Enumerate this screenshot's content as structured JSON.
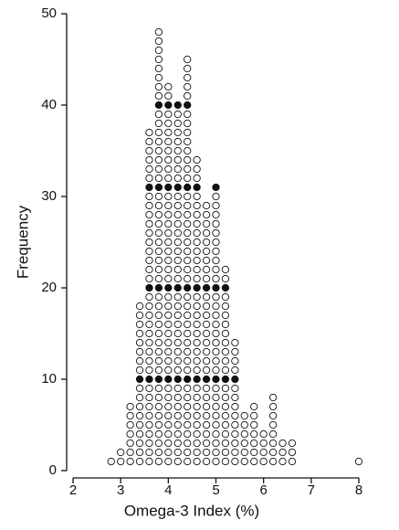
{
  "chart_data": {
    "type": "dotplot",
    "x_label": "Omega-3 Index (%)",
    "y_label": "Frequency",
    "x": [
      2.8,
      3.0,
      3.2,
      3.4,
      3.6,
      3.8,
      4.0,
      4.2,
      4.4,
      4.6,
      4.8,
      5.0,
      5.2,
      5.4,
      5.6,
      5.8,
      6.0,
      6.2,
      6.4,
      6.6,
      8.0
    ],
    "values": [
      1,
      2,
      7,
      18,
      37,
      48,
      42,
      40,
      45,
      34,
      29,
      31,
      22,
      14,
      6,
      7,
      4,
      8,
      3,
      3,
      1
    ],
    "filled_rows": [
      10,
      20,
      31,
      40
    ],
    "color": "#111111",
    "xlim": [
      2,
      8
    ],
    "xticks": [
      2,
      3,
      4,
      5,
      6,
      7,
      8
    ],
    "ylim": [
      0,
      50
    ],
    "yticks": [
      0,
      10,
      20,
      30,
      40,
      50
    ]
  }
}
